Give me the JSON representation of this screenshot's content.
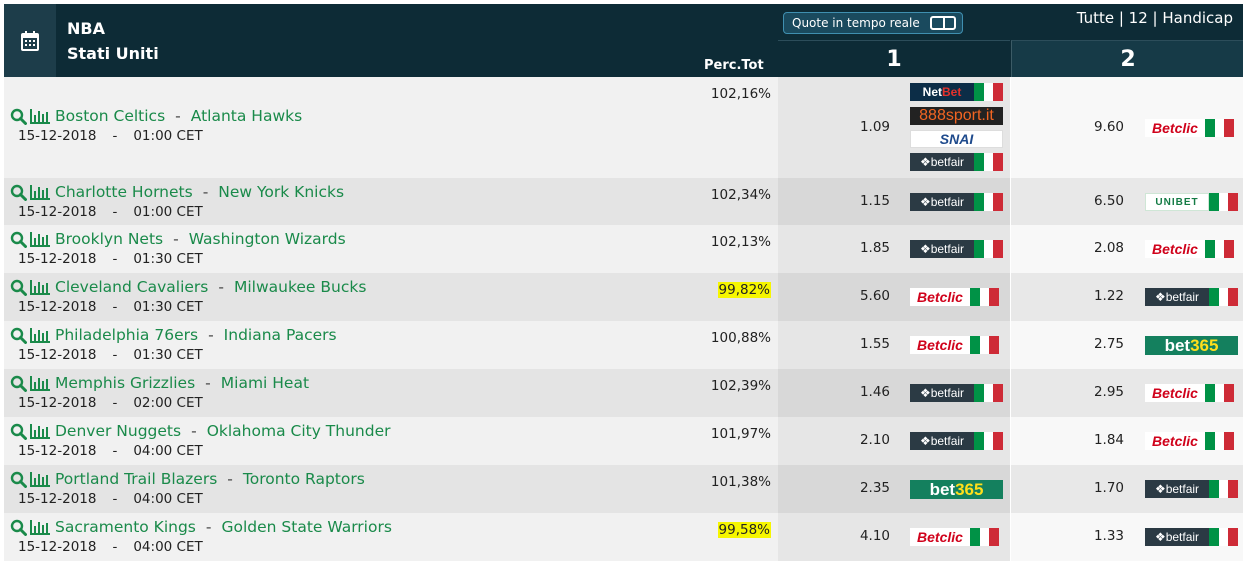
{
  "header": {
    "league": "NBA",
    "country": "Stati Uniti",
    "perc_label": "Perc.Tot",
    "realtime_label": "Quote in tempo reale",
    "filters": [
      "Tutte",
      "12",
      "Handicap"
    ],
    "col1": "1",
    "col2": "2"
  },
  "matches": [
    {
      "home": "Boston Celtics",
      "away": "Atlanta Hawks",
      "date": "15-12-2018",
      "time": "01:00 CET",
      "perc": "102,16%",
      "highlight": false,
      "odd1": "1.09",
      "bm1": [
        "netbet",
        "888sport",
        "snai",
        "betfair"
      ],
      "odd2": "9.60",
      "bm2": [
        "betclic"
      ]
    },
    {
      "home": "Charlotte Hornets",
      "away": "New York Knicks",
      "date": "15-12-2018",
      "time": "01:00 CET",
      "perc": "102,34%",
      "highlight": false,
      "odd1": "1.15",
      "bm1": [
        "betfair"
      ],
      "odd2": "6.50",
      "bm2": [
        "unibet"
      ]
    },
    {
      "home": "Brooklyn Nets",
      "away": "Washington Wizards",
      "date": "15-12-2018",
      "time": "01:30 CET",
      "perc": "102,13%",
      "highlight": false,
      "odd1": "1.85",
      "bm1": [
        "betfair"
      ],
      "odd2": "2.08",
      "bm2": [
        "betclic"
      ]
    },
    {
      "home": "Cleveland Cavaliers",
      "away": "Milwaukee Bucks",
      "date": "15-12-2018",
      "time": "01:30 CET",
      "perc": "99,82%",
      "highlight": true,
      "odd1": "5.60",
      "bm1": [
        "betclic"
      ],
      "odd2": "1.22",
      "bm2": [
        "betfair"
      ]
    },
    {
      "home": "Philadelphia 76ers",
      "away": "Indiana Pacers",
      "date": "15-12-2018",
      "time": "01:30 CET",
      "perc": "100,88%",
      "highlight": false,
      "odd1": "1.55",
      "bm1": [
        "betclic"
      ],
      "odd2": "2.75",
      "bm2": [
        "bet365"
      ]
    },
    {
      "home": "Memphis Grizzlies",
      "away": "Miami Heat",
      "date": "15-12-2018",
      "time": "02:00 CET",
      "perc": "102,39%",
      "highlight": false,
      "odd1": "1.46",
      "bm1": [
        "betfair"
      ],
      "odd2": "2.95",
      "bm2": [
        "betclic"
      ]
    },
    {
      "home": "Denver Nuggets",
      "away": "Oklahoma City Thunder",
      "date": "15-12-2018",
      "time": "04:00 CET",
      "perc": "101,97%",
      "highlight": false,
      "odd1": "2.10",
      "bm1": [
        "betfair"
      ],
      "odd2": "1.84",
      "bm2": [
        "betclic"
      ]
    },
    {
      "home": "Portland Trail Blazers",
      "away": "Toronto Raptors",
      "date": "15-12-2018",
      "time": "04:00 CET",
      "perc": "101,38%",
      "highlight": false,
      "odd1": "2.35",
      "bm1": [
        "bet365"
      ],
      "odd2": "1.70",
      "bm2": [
        "betfair"
      ]
    },
    {
      "home": "Sacramento Kings",
      "away": "Golden State Warriors",
      "date": "15-12-2018",
      "time": "04:00 CET",
      "perc": "99,58%",
      "highlight": true,
      "odd1": "4.10",
      "bm1": [
        "betclic"
      ],
      "odd2": "1.33",
      "bm2": [
        "betfair"
      ]
    }
  ],
  "bookmakers": {
    "betfair": "betfair",
    "betclic": "Betclic",
    "bet365": "bet365",
    "netbet": "NetBet",
    "888sport": "888sport.it",
    "snai": "SNAI",
    "unibet": "UNIBET"
  },
  "colors": {
    "header_bg": "#0d2b36",
    "link": "#1a8a4a",
    "highlight": "#f6f600"
  },
  "icons": {
    "calendar": "calendar-icon",
    "search": "search-icon",
    "stats": "bar-chart-icon",
    "flag": "italy-flag-icon"
  }
}
